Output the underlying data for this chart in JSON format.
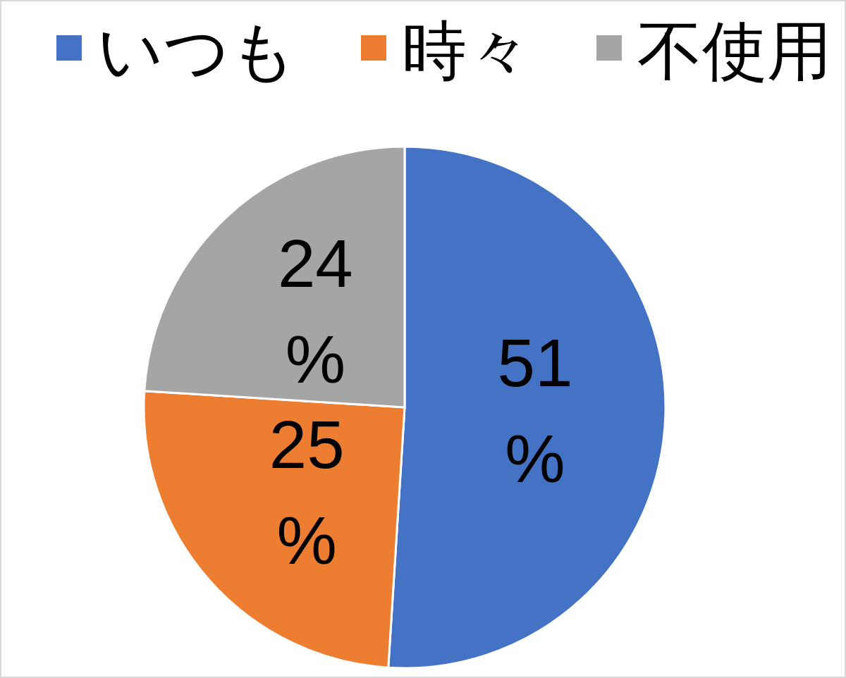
{
  "chart_data": {
    "type": "pie",
    "categories": [
      "いつも",
      "時々",
      "不使用"
    ],
    "values": [
      51,
      25,
      24
    ],
    "colors": [
      "#4472c4",
      "#ed7d31",
      "#a5a5a5"
    ],
    "value_labels": [
      "51%",
      "25%",
      "24%"
    ],
    "legend": "top"
  }
}
